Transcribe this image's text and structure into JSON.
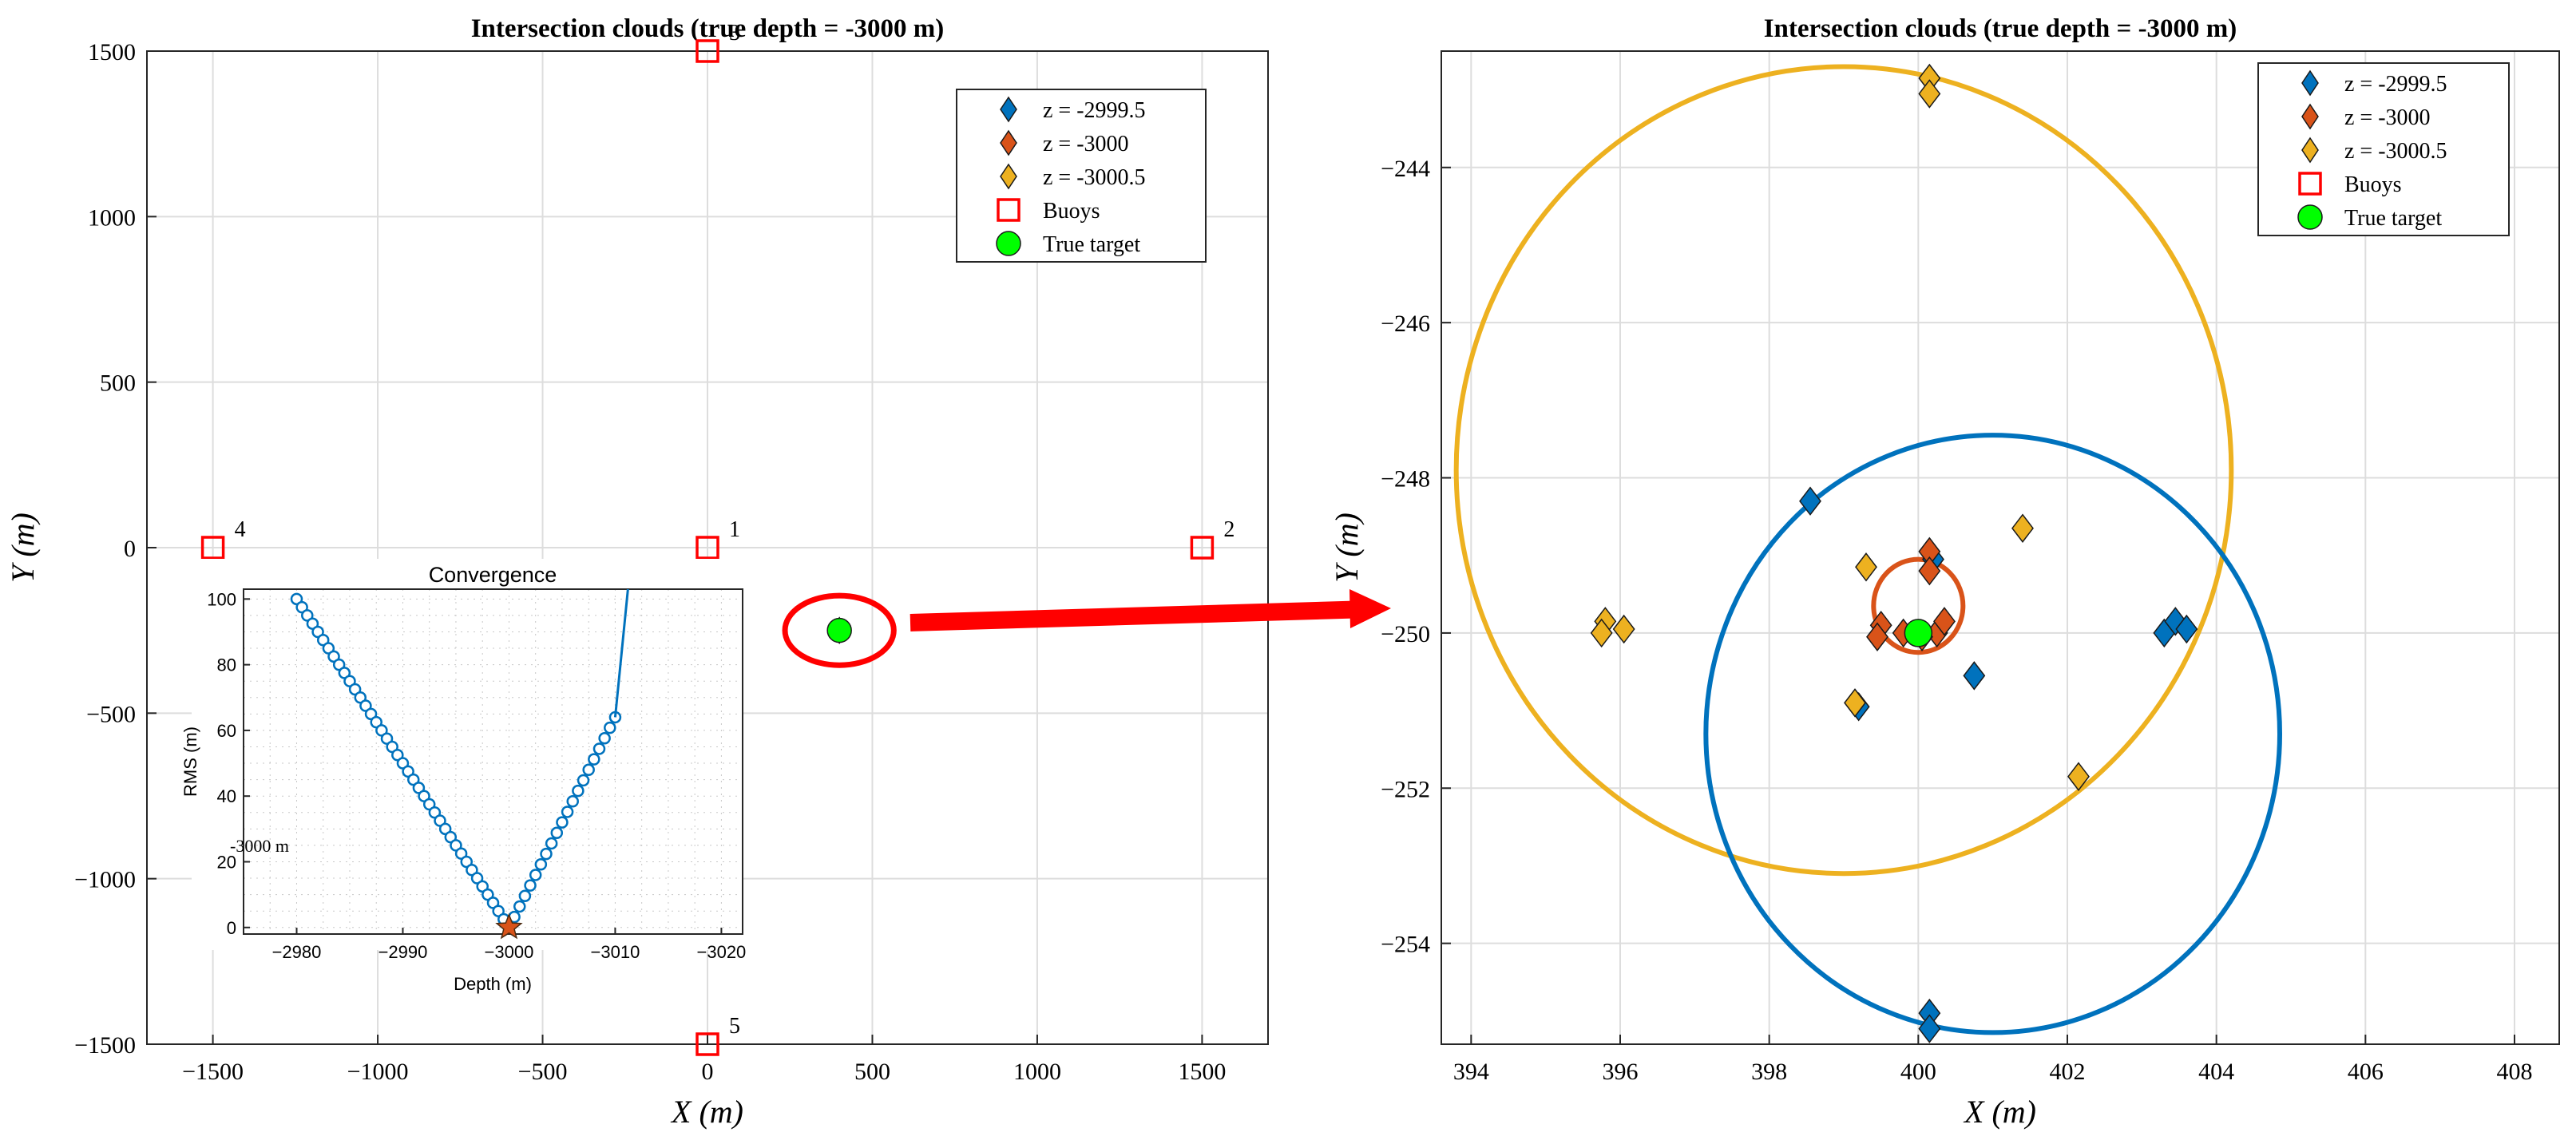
{
  "colors": {
    "blue": "#0072BD",
    "orange": "#D95319",
    "yellow": "#EDB120",
    "red": "#FF0000",
    "green": "#00FF00",
    "grid": "#DDDDDD",
    "axis": "#262626"
  },
  "chart_data": [
    {
      "type": "scatter",
      "title": "Intersection clouds (true depth = -3000 m)",
      "xlabel": "X (m)",
      "ylabel": "Y (m)",
      "xlim": [
        -1700,
        1700
      ],
      "ylim": [
        -1500,
        1500
      ],
      "xticks": [
        -1500,
        -1000,
        -500,
        0,
        500,
        1000,
        1500
      ],
      "yticks": [
        -1500,
        -1000,
        -500,
        0,
        500,
        1000,
        1500
      ],
      "grid": true,
      "legend_position": "top-right",
      "legend": [
        {
          "label": "z = -2999.5",
          "marker": "diamond",
          "color": "blue"
        },
        {
          "label": "z = -3000",
          "marker": "diamond",
          "color": "orange"
        },
        {
          "label": "z = -3000.5",
          "marker": "diamond",
          "color": "yellow"
        },
        {
          "label": "Buoys",
          "marker": "square",
          "color": "red"
        },
        {
          "label": "True target",
          "marker": "circle",
          "color": "green"
        }
      ],
      "buoys": [
        {
          "x": 0,
          "y": 1500,
          "label": "3"
        },
        {
          "x": -1500,
          "y": 0,
          "label": "4"
        },
        {
          "x": 0,
          "y": 0,
          "label": "1"
        },
        {
          "x": 1500,
          "y": 0,
          "label": "2"
        },
        {
          "x": 0,
          "y": -1500,
          "label": "5"
        }
      ],
      "cluster": {
        "x": 400,
        "y": -250
      },
      "highlight_ellipse": {
        "cx": 400,
        "cy": -250,
        "rx": 165,
        "ry": 105
      },
      "inset": {
        "type": "line",
        "title": "Convergence",
        "xlabel": "Depth (m)",
        "ylabel": "RMS (m)",
        "xlim": [
          -2975,
          -3022
        ],
        "ylim": [
          -2,
          103
        ],
        "xticks": [
          -2980,
          -2990,
          -3000,
          -3010,
          -3020
        ],
        "yticks": [
          0,
          20,
          40,
          60,
          80,
          100
        ],
        "annotation": "-3000 m",
        "minimum": {
          "x": -3000,
          "y": 0
        },
        "series": [
          {
            "name": "",
            "x": [
              -2980,
              -2980.5,
              -2981,
              -2981.5,
              -2982,
              -2982.5,
              -2983,
              -2983.5,
              -2984,
              -2984.5,
              -2985,
              -2985.5,
              -2986,
              -2986.5,
              -2987,
              -2987.5,
              -2988,
              -2988.5,
              -2989,
              -2989.5,
              -2990,
              -2990.5,
              -2991,
              -2991.5,
              -2992,
              -2992.5,
              -2993,
              -2993.5,
              -2994,
              -2994.5,
              -2995,
              -2995.5,
              -2996,
              -2996.5,
              -2997,
              -2997.5,
              -2998,
              -2998.5,
              -2999,
              -2999.5,
              -3000,
              -3000.5,
              -3001,
              -3001.5,
              -3002,
              -3002.5,
              -3003,
              -3003.5,
              -3004,
              -3004.5,
              -3005,
              -3005.5,
              -3006,
              -3006.5,
              -3007,
              -3007.5,
              -3008,
              -3008.5,
              -3009,
              -3009.5,
              -3010
            ],
            "y": [
              100,
              97.5,
              95,
              92.5,
              90,
              87.5,
              85,
              82.5,
              80,
              77.5,
              75,
              72.5,
              70,
              67.5,
              65,
              62.5,
              60,
              57.5,
              55,
              52.5,
              50,
              47.5,
              45,
              42.5,
              40,
              37.5,
              35,
              32.5,
              30,
              27.5,
              25,
              22.5,
              20,
              17.5,
              15,
              12.5,
              10,
              7.5,
              5,
              2.5,
              0,
              3.2,
              6.4,
              9.6,
              12.8,
              16,
              19.2,
              22.4,
              25.6,
              28.8,
              32,
              35.2,
              38.4,
              41.6,
              44.8,
              48,
              51.2,
              54.4,
              57.6,
              60.8,
              64
            ]
          }
        ]
      }
    },
    {
      "type": "scatter",
      "title": "Intersection clouds (true depth = -3000 m)",
      "xlabel": "X (m)",
      "ylabel": "Y (m)",
      "xlim": [
        393.6,
        408.6
      ],
      "ylim": [
        -255.3,
        -242.5
      ],
      "xticks": [
        394,
        396,
        398,
        400,
        402,
        404,
        406,
        408
      ],
      "yticks": [
        -254,
        -252,
        -250,
        -248,
        -246,
        -244
      ],
      "grid": true,
      "legend_position": "top-right",
      "legend": [
        {
          "label": "z = -2999.5",
          "marker": "diamond",
          "color": "blue"
        },
        {
          "label": "z = -3000",
          "marker": "diamond",
          "color": "orange"
        },
        {
          "label": "z = -3000.5",
          "marker": "diamond",
          "color": "yellow"
        },
        {
          "label": "Buoys",
          "marker": "square",
          "color": "red"
        },
        {
          "label": "True target",
          "marker": "circle",
          "color": "green"
        }
      ],
      "series": [
        {
          "name": "z = -2999.5",
          "color": "blue",
          "points": [
            {
              "x": 398.55,
              "y": -248.3
            },
            {
              "x": 400.2,
              "y": -249.05
            },
            {
              "x": 400.75,
              "y": -250.55
            },
            {
              "x": 399.2,
              "y": -250.95
            },
            {
              "x": 403.3,
              "y": -250.0
            },
            {
              "x": 403.45,
              "y": -249.85
            },
            {
              "x": 403.6,
              "y": -249.95
            },
            {
              "x": 400.15,
              "y": -254.9
            },
            {
              "x": 400.15,
              "y": -255.1
            }
          ]
        },
        {
          "name": "z = -3000",
          "color": "orange",
          "points": [
            {
              "x": 400.15,
              "y": -248.95
            },
            {
              "x": 400.15,
              "y": -249.2
            },
            {
              "x": 399.5,
              "y": -249.9
            },
            {
              "x": 399.45,
              "y": -250.05
            },
            {
              "x": 399.8,
              "y": -250.0
            },
            {
              "x": 400.25,
              "y": -250.0
            },
            {
              "x": 400.35,
              "y": -249.85
            },
            {
              "x": 400.05,
              "y": -250.05
            }
          ]
        },
        {
          "name": "z = -3000.5",
          "color": "yellow",
          "points": [
            {
              "x": 400.15,
              "y": -242.85
            },
            {
              "x": 400.15,
              "y": -243.05
            },
            {
              "x": 401.4,
              "y": -248.65
            },
            {
              "x": 399.3,
              "y": -249.15
            },
            {
              "x": 395.8,
              "y": -249.85
            },
            {
              "x": 395.75,
              "y": -250.0
            },
            {
              "x": 396.05,
              "y": -249.95
            },
            {
              "x": 399.15,
              "y": -250.9
            },
            {
              "x": 402.15,
              "y": -251.85
            }
          ]
        }
      ],
      "true_target": {
        "x": 400,
        "y": -250
      },
      "circles": [
        {
          "color": "yellow",
          "cx": 399,
          "cy": -247.9,
          "r": 5.2
        },
        {
          "color": "blue",
          "cx": 401,
          "cy": -251.3,
          "r": 3.85
        },
        {
          "color": "orange",
          "cx": 400,
          "cy": -249.65,
          "r": 0.6
        }
      ]
    }
  ]
}
